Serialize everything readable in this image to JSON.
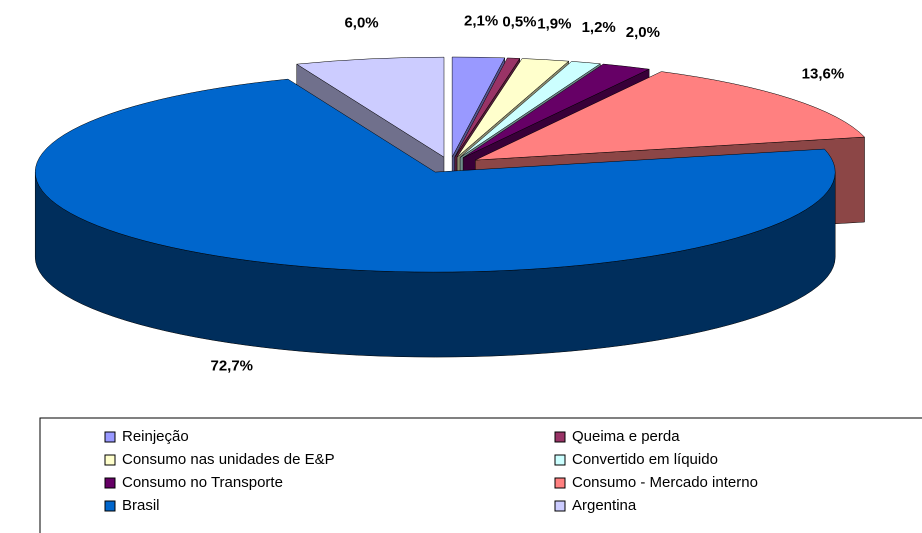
{
  "chart_data": {
    "type": "pie3d",
    "categories": [
      "Reinjeção",
      "Queima e perda",
      "Consumo nas unidades de E&P",
      "Convertido em líquido",
      "Consumo no Transporte",
      "Consumo - Mercado interno",
      "Brasil",
      "Argentina"
    ],
    "values": [
      2.1,
      0.5,
      1.9,
      1.2,
      2.0,
      13.6,
      72.7,
      6.0
    ],
    "value_labels": [
      "2,1%",
      "0,5%",
      "1,9%",
      "1,2%",
      "2,0%",
      "13,6%",
      "72,7%",
      "6,0%"
    ],
    "colors": [
      "#9999ff",
      "#993366",
      "#ffffcc",
      "#ccffff",
      "#660066",
      "#ff8080",
      "#0066cc",
      "#ccccff"
    ]
  }
}
